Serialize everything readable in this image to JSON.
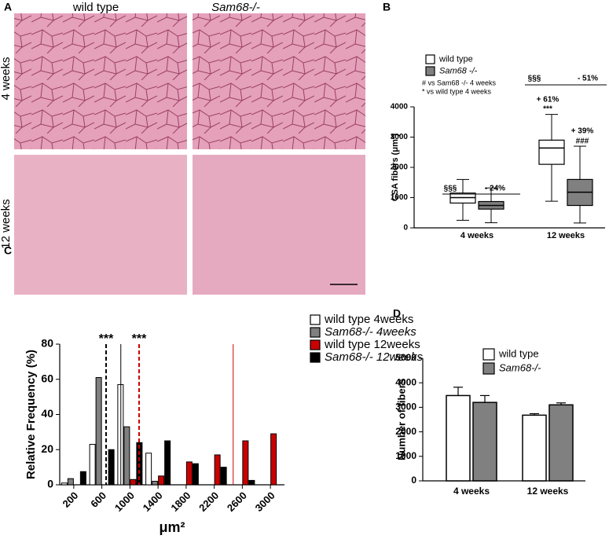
{
  "panel_a": {
    "label": "A",
    "columns": [
      "wild type",
      "Sam68-/-"
    ],
    "rows": [
      "4 weeks",
      "12 weeks"
    ]
  },
  "chart_data": [
    {
      "panel": "B",
      "type": "box",
      "ylabel": "CSA fibers (μm²)",
      "categories": [
        "4 weeks",
        "12 weeks"
      ],
      "series": [
        {
          "name": "wild type",
          "color": "#ffffff",
          "min": [
            250,
            880
          ],
          "q1": [
            820,
            2100
          ],
          "median": [
            1000,
            2640
          ],
          "q3": [
            1150,
            2900
          ],
          "max": [
            1600,
            3750
          ]
        },
        {
          "name": "Sam68 -/-",
          "color": "#808080",
          "min": [
            170,
            160
          ],
          "q1": [
            620,
            740
          ],
          "median": [
            740,
            1180
          ],
          "q3": [
            870,
            1600
          ],
          "max": [
            1320,
            2700
          ]
        }
      ],
      "ylim": [
        0,
        4000
      ],
      "yticks": [
        0,
        1000,
        2000,
        3000,
        4000
      ],
      "notes": [
        "# vs Sam68 -/- 4 weeks",
        "* vs wild type 4 weeks"
      ],
      "annotations": [
        "§§§",
        "- 24%",
        "§§§",
        "- 51%",
        "+ 61%",
        "***",
        "+ 39%",
        "###"
      ]
    },
    {
      "panel": "C",
      "type": "bar",
      "ylabel": "Relative Frequency (%)",
      "xlabel": "μm²",
      "x": [
        200,
        600,
        1000,
        1400,
        1800,
        2200,
        2600,
        3000
      ],
      "xlim": [
        0,
        3200
      ],
      "xticks": [
        200,
        600,
        1000,
        1400,
        1800,
        2200,
        2600,
        3000
      ],
      "ylim": [
        0,
        80
      ],
      "yticks": [
        0,
        20,
        40,
        60,
        80
      ],
      "series": [
        {
          "name": "wild type 4weeks",
          "color": "#ffffff",
          "values": [
            1,
            23,
            57,
            18,
            0,
            0,
            0,
            0
          ]
        },
        {
          "name": "Sam68-/- 4weeks",
          "color": "#808080",
          "values": [
            3.5,
            61,
            33,
            2,
            0,
            0,
            0,
            0
          ]
        },
        {
          "name": "wild type 12weeks",
          "color": "#cc0000",
          "values": [
            0,
            0,
            3,
            5,
            13,
            17,
            25,
            29
          ]
        },
        {
          "name": "Sam68-/- 12weeks",
          "color": "#000000",
          "values": [
            7.5,
            20,
            24,
            25,
            12,
            10,
            2.5,
            0
          ]
        }
      ],
      "reference_lines": [
        {
          "x": 660,
          "color": "#000000",
          "dashed": true,
          "label": "***"
        },
        {
          "x": 870,
          "color": "#000000",
          "dashed": false
        },
        {
          "x": 1130,
          "color": "#cc0000",
          "dashed": true,
          "label": "***"
        },
        {
          "x": 2470,
          "color": "#cc0000",
          "dashed": false
        }
      ]
    },
    {
      "panel": "D",
      "type": "bar",
      "ylabel": "Number of fibers",
      "categories": [
        "4 weeks",
        "12 weeks"
      ],
      "series": [
        {
          "name": "wild type",
          "color": "#ffffff",
          "values": [
            3480,
            2680
          ],
          "errors": [
            340,
            60
          ]
        },
        {
          "name": "Sam68-/-",
          "color": "#808080",
          "values": [
            3200,
            3100
          ],
          "errors": [
            280,
            80
          ]
        }
      ],
      "ylim": [
        0,
        5000
      ],
      "yticks": [
        0,
        1000,
        2000,
        3000,
        4000,
        5000
      ]
    }
  ]
}
